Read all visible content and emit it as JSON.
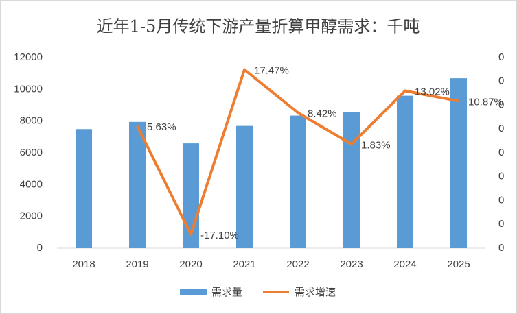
{
  "chart_data": {
    "type": "bar-line",
    "title": "近年1-5月传统下游产量折算甲醇需求：千吨",
    "categories": [
      "2018",
      "2019",
      "2020",
      "2021",
      "2022",
      "2023",
      "2024",
      "2025"
    ],
    "series": [
      {
        "name": "需求量",
        "type": "bar",
        "color": "#5b9bd5",
        "values": [
          7500,
          7950,
          6600,
          7700,
          8350,
          8550,
          9600,
          10700
        ]
      },
      {
        "name": "需求增速",
        "type": "line",
        "axis": "y2",
        "color": "#ed7d31",
        "values": [
          null,
          5.63,
          -17.1,
          17.47,
          8.42,
          1.83,
          13.02,
          10.87
        ],
        "value_labels": [
          null,
          "5.63%",
          "-17.10%",
          "17.47%",
          "8.42%",
          "1.83%",
          "13.02%",
          "10.87%"
        ]
      }
    ],
    "ylim": [
      0,
      12000
    ],
    "yticks": [
      0,
      2000,
      4000,
      6000,
      8000,
      10000,
      12000
    ],
    "y2lim": [
      -20,
      20
    ],
    "y2ticks": [
      {
        "value": -20,
        "label": "0"
      },
      {
        "value": -15,
        "label": "0"
      },
      {
        "value": -10,
        "label": "0"
      },
      {
        "value": -5,
        "label": "0"
      },
      {
        "value": 0,
        "label": "0"
      },
      {
        "value": 5,
        "label": "0"
      },
      {
        "value": 10,
        "label": "0"
      },
      {
        "value": 15,
        "label": "0"
      },
      {
        "value": 20,
        "label": "0"
      }
    ]
  }
}
